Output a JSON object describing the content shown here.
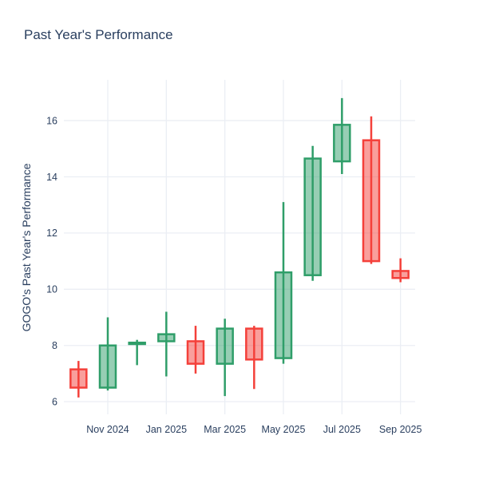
{
  "title": "Past Year's Performance",
  "chart_data": {
    "type": "candlestick",
    "title": "Past Year's Performance",
    "xlabel": "",
    "ylabel": "GOGO's Past Year's Performance",
    "y_ticks": [
      6,
      8,
      10,
      12,
      14,
      16
    ],
    "ylim": [
      5.55,
      17.45
    ],
    "grid": true,
    "legend": "none",
    "x_ticks": [
      {
        "index": 1,
        "label": "Nov 2024"
      },
      {
        "index": 3,
        "label": "Jan 2025"
      },
      {
        "index": 5,
        "label": "Mar 2025"
      },
      {
        "index": 7,
        "label": "May 2025"
      },
      {
        "index": 9,
        "label": "Jul 2025"
      },
      {
        "index": 11,
        "label": "Sep 2025"
      }
    ],
    "increasing_color": "#2f9e69",
    "decreasing_color": "#f4403a",
    "fill_alpha_hex": "80",
    "grid_color": "#ebeef4",
    "text_color": "#2a3f5f",
    "candles": [
      {
        "month": "Oct 2024",
        "open": 7.15,
        "high": 7.45,
        "low": 6.15,
        "close": 6.5,
        "direction": "down"
      },
      {
        "month": "Nov 2024",
        "open": 6.5,
        "high": 9.0,
        "low": 6.4,
        "close": 8.0,
        "direction": "up"
      },
      {
        "month": "Dec 2024",
        "open": 8.05,
        "high": 8.2,
        "low": 7.3,
        "close": 8.1,
        "direction": "up"
      },
      {
        "month": "Jan 2025",
        "open": 8.15,
        "high": 9.2,
        "low": 6.9,
        "close": 8.4,
        "direction": "up"
      },
      {
        "month": "Feb 2025",
        "open": 8.15,
        "high": 8.7,
        "low": 7.0,
        "close": 7.35,
        "direction": "down"
      },
      {
        "month": "Mar 2025",
        "open": 7.35,
        "high": 8.95,
        "low": 6.2,
        "close": 8.6,
        "direction": "up"
      },
      {
        "month": "Apr 2025",
        "open": 8.6,
        "high": 8.7,
        "low": 6.45,
        "close": 7.5,
        "direction": "down"
      },
      {
        "month": "May 2025",
        "open": 7.55,
        "high": 13.1,
        "low": 7.35,
        "close": 10.6,
        "direction": "up"
      },
      {
        "month": "Jun 2025",
        "open": 10.5,
        "high": 15.1,
        "low": 10.3,
        "close": 14.65,
        "direction": "up"
      },
      {
        "month": "Jul 2025",
        "open": 14.55,
        "high": 16.8,
        "low": 14.1,
        "close": 15.85,
        "direction": "up"
      },
      {
        "month": "Aug 2025",
        "open": 15.3,
        "high": 16.15,
        "low": 10.9,
        "close": 11.0,
        "direction": "down"
      },
      {
        "month": "Sep 2025",
        "open": 10.65,
        "high": 11.1,
        "low": 10.25,
        "close": 10.4,
        "direction": "down"
      }
    ]
  }
}
